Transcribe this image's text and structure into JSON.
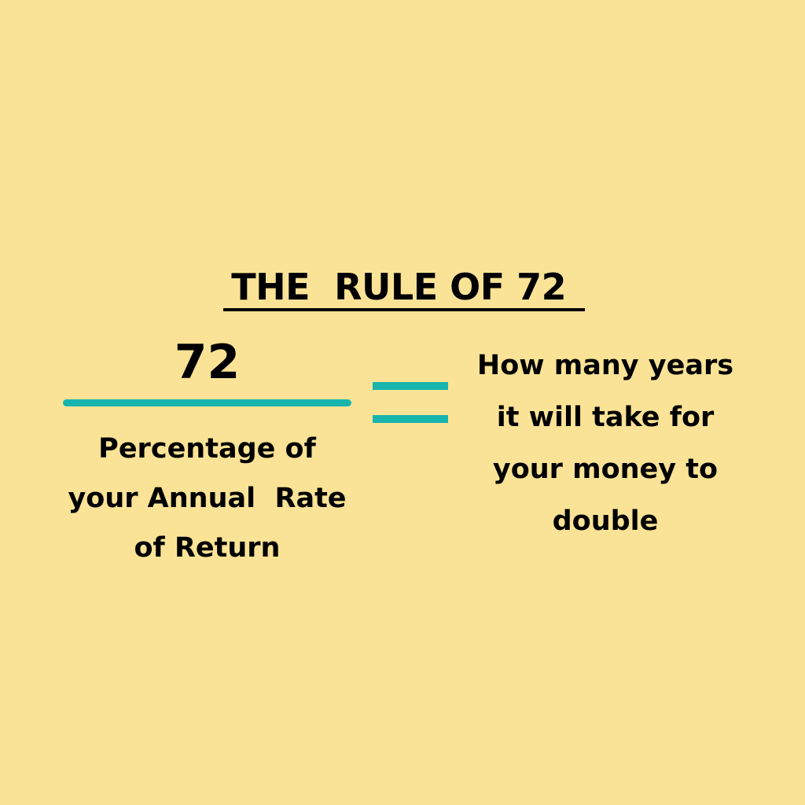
{
  "title": "THE  RULE OF 72 ",
  "numerator": "72",
  "denominator": "Percentage of\nyour Annual  Rate\nof Return",
  "result": [
    "How many years",
    "it will take for",
    "your money to",
    "double"
  ],
  "colors": {
    "background": "#FAE396",
    "accent": "#17B5AE",
    "text": "#000000"
  }
}
